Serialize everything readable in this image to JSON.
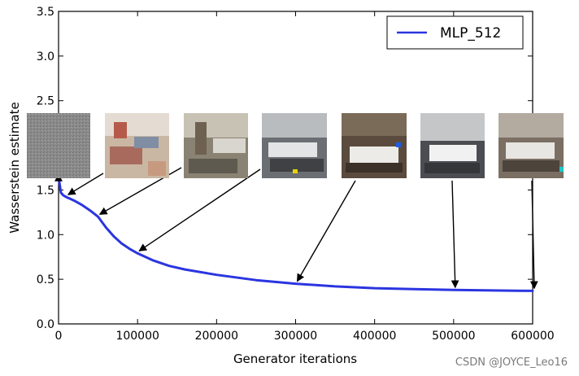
{
  "chart_data": {
    "type": "line",
    "xlabel": "Generator iterations",
    "ylabel": "Wasserstein estimate",
    "xlim": [
      0,
      600000
    ],
    "ylim": [
      0,
      3.5
    ],
    "xticks": [
      0,
      100000,
      200000,
      300000,
      400000,
      500000,
      600000
    ],
    "xtick_labels": [
      "0",
      "100000",
      "200000",
      "300000",
      "400000",
      "500000",
      "600000"
    ],
    "yticks": [
      0.0,
      0.5,
      1.0,
      1.5,
      2.0,
      2.5,
      3.0,
      3.5
    ],
    "ytick_labels": [
      "0.0",
      "0.5",
      "1.0",
      "1.5",
      "2.0",
      "2.5",
      "3.0",
      "3.5"
    ],
    "legend_position": "top-right",
    "series": [
      {
        "name": "MLP_512",
        "color": "#2b35e0",
        "x": [
          0,
          3000,
          6000,
          10000,
          15000,
          20000,
          30000,
          40000,
          50000,
          60000,
          70000,
          80000,
          90000,
          100000,
          120000,
          140000,
          160000,
          200000,
          250000,
          300000,
          350000,
          400000,
          450000,
          500000,
          550000,
          600000
        ],
        "y": [
          1.65,
          1.47,
          1.44,
          1.42,
          1.4,
          1.38,
          1.33,
          1.27,
          1.2,
          1.08,
          0.98,
          0.9,
          0.84,
          0.79,
          0.71,
          0.65,
          0.61,
          0.55,
          0.49,
          0.45,
          0.42,
          0.4,
          0.39,
          0.38,
          0.375,
          0.37
        ]
      }
    ],
    "annotations": [
      {
        "sample": "noise",
        "x": 0,
        "y": 1.65
      },
      {
        "sample": "early",
        "x": 10000,
        "y": 1.42
      },
      {
        "sample": "blurry-room",
        "x": 50000,
        "y": 1.2
      },
      {
        "sample": "room-1",
        "x": 100000,
        "y": 0.79
      },
      {
        "sample": "bedroom-1",
        "x": 300000,
        "y": 0.45
      },
      {
        "sample": "bedroom-2",
        "x": 500000,
        "y": 0.38
      },
      {
        "sample": "bedroom-3",
        "x": 600000,
        "y": 0.37
      }
    ]
  },
  "watermark": "CSDN @JOYCE_Leo16"
}
